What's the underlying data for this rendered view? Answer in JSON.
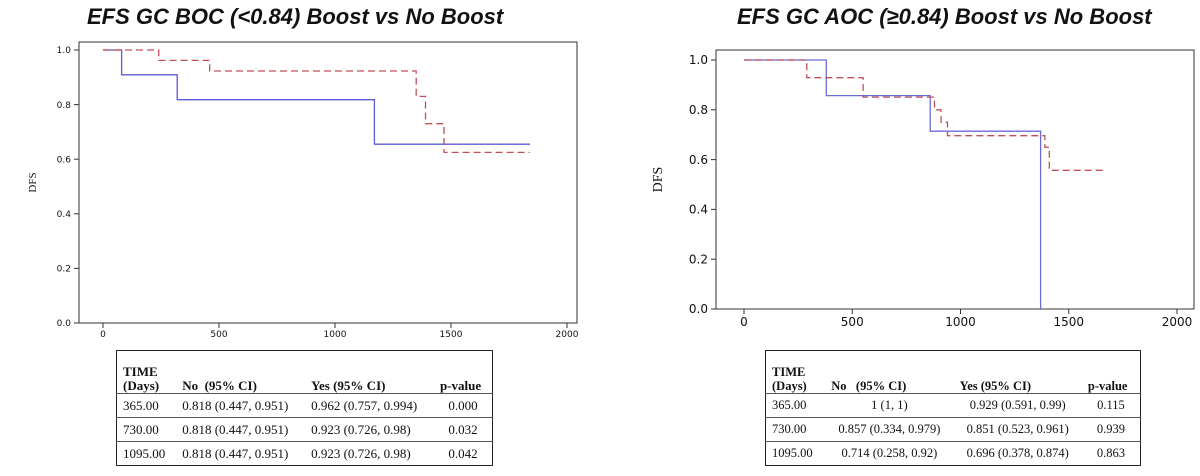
{
  "chart_data": [
    {
      "type": "line",
      "title": "EFS GC BOC (<0.84) Boost vs No Boost",
      "ylabel": "DFS",
      "xlabel": "",
      "xlim": [
        0,
        2000
      ],
      "ylim": [
        0,
        1.0
      ],
      "x_ticks": [
        0,
        500,
        1000,
        1500,
        2000
      ],
      "y_ticks": [
        0.0,
        0.2,
        0.4,
        0.6,
        0.8,
        1.0
      ],
      "y_tick_labels": [
        "0.0",
        "0.2",
        "0.4",
        "0.6",
        "0.8",
        "1.0"
      ],
      "step": true,
      "grid": false,
      "series": [
        {
          "style": "solid",
          "color": "#5b5bd6",
          "x": [
            0,
            80,
            80,
            320,
            320,
            1170,
            1170,
            1840
          ],
          "y": [
            1.0,
            1.0,
            0.909,
            0.909,
            0.818,
            0.818,
            0.655,
            0.655
          ]
        },
        {
          "style": "dashed",
          "color": "#c0505a",
          "x": [
            0,
            240,
            240,
            460,
            460,
            1350,
            1350,
            1390,
            1390,
            1470,
            1470,
            1840
          ],
          "y": [
            1.0,
            1.0,
            0.962,
            0.962,
            0.923,
            0.923,
            0.83,
            0.83,
            0.73,
            0.73,
            0.625,
            0.625
          ]
        }
      ],
      "table": {
        "headers": [
          "TIME\n(Days)",
          "No  (95% CI)",
          "Yes (95% CI)",
          "p-value"
        ],
        "rows": [
          [
            "365.00",
            "0.818 (0.447, 0.951)",
            "0.962 (0.757, 0.994)",
            "0.000"
          ],
          [
            "730.00",
            "0.818 (0.447, 0.951)",
            "0.923 (0.726, 0.98)",
            "0.032"
          ],
          [
            "1095.00",
            "0.818 (0.447, 0.951)",
            "0.923 (0.726, 0.98)",
            "0.042"
          ]
        ]
      }
    },
    {
      "type": "line",
      "title": "EFS GC AOC (≥0.84) Boost vs No Boost",
      "ylabel": "DFS",
      "xlabel": "",
      "xlim": [
        0,
        2000
      ],
      "ylim": [
        0,
        1.0
      ],
      "x_ticks": [
        0,
        500,
        1000,
        1500,
        2000
      ],
      "y_ticks": [
        0.0,
        0.2,
        0.4,
        0.6,
        0.8,
        1.0
      ],
      "y_tick_labels": [
        "0.0",
        "0.2",
        "0.4",
        "0.6",
        "0.8",
        "1.0"
      ],
      "step": true,
      "grid": false,
      "series": [
        {
          "style": "solid",
          "color": "#6b6bd6",
          "x": [
            0,
            380,
            380,
            860,
            860,
            1370,
            1370
          ],
          "y": [
            1.0,
            1.0,
            0.857,
            0.857,
            0.714,
            0.714,
            0.0
          ]
        },
        {
          "style": "dashed",
          "color": "#c0505a",
          "x": [
            0,
            290,
            290,
            550,
            550,
            880,
            880,
            910,
            910,
            940,
            940,
            1390,
            1390,
            1410,
            1410,
            1670
          ],
          "y": [
            1.0,
            1.0,
            0.929,
            0.929,
            0.851,
            0.851,
            0.8,
            0.8,
            0.75,
            0.75,
            0.696,
            0.696,
            0.65,
            0.65,
            0.557,
            0.557
          ]
        }
      ],
      "table": {
        "headers": [
          "TIME\n(Days)",
          "No   (95% CI)",
          "Yes (95% CI)",
          "p-value"
        ],
        "rows": [
          [
            "365.00",
            "1 (1, 1)",
            "0.929 (0.591, 0.99)",
            "0.115"
          ],
          [
            "730.00",
            "0.857 (0.334, 0.979)",
            "0.851 (0.523, 0.961)",
            "0.939"
          ],
          [
            "1095.00",
            "0.714 (0.258, 0.92)",
            "0.696 (0.378, 0.874)",
            "0.863"
          ]
        ]
      }
    }
  ]
}
